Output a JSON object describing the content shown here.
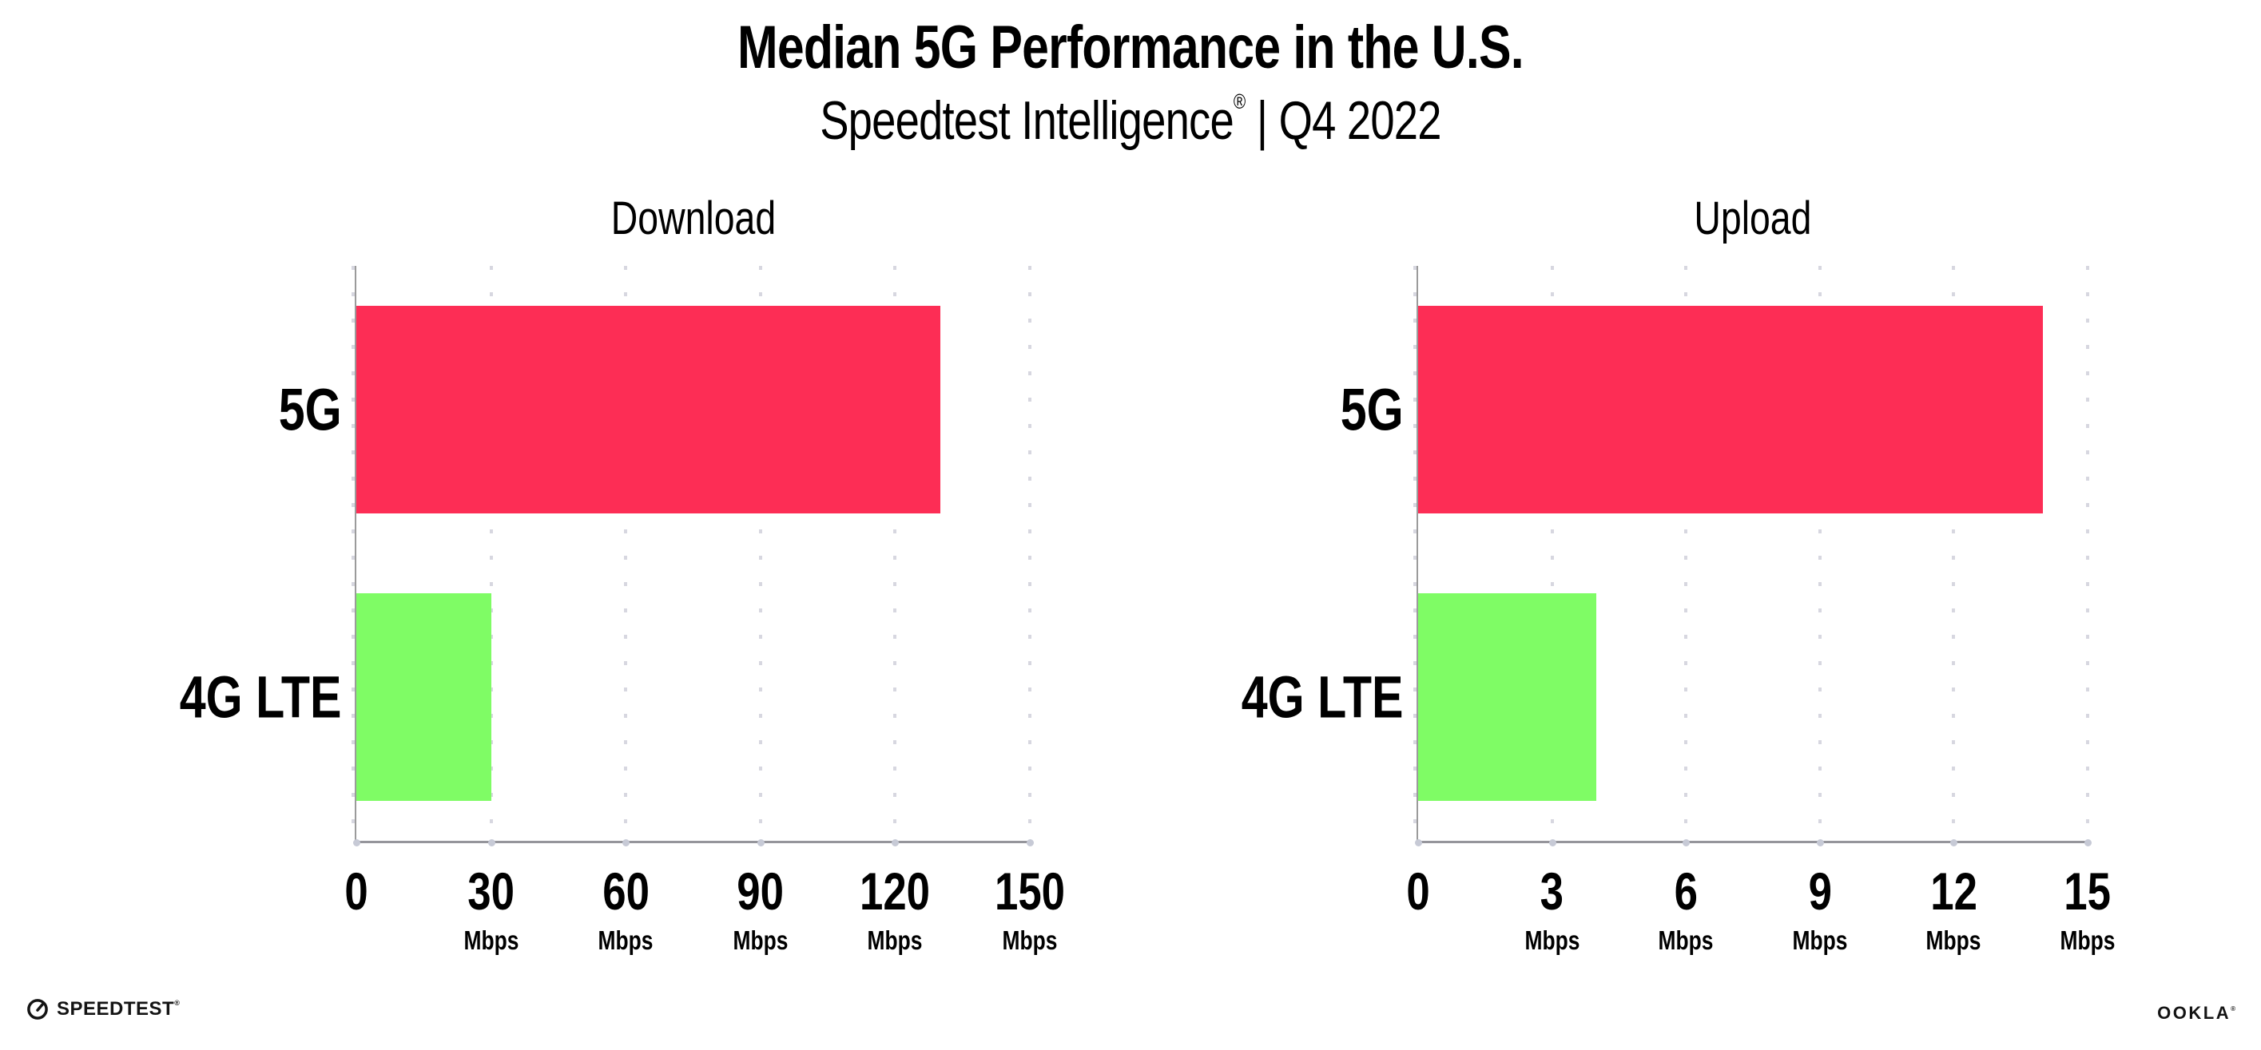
{
  "page": {
    "background": "#ffffff"
  },
  "header": {
    "title": "Median 5G Performance in the U.S.",
    "subtitle_brand": "Speedtest Intelligence",
    "subtitle_reg": "®",
    "subtitle_separator": "|",
    "subtitle_period": "Q4 2022"
  },
  "colors": {
    "bar_5g": "#FD2D55",
    "bar_4g_lte": "#7FFC65",
    "axis_line": "#95959B",
    "gridline_dots": "#D7D7E0",
    "axis_tick_dots": "#C7CAD6",
    "text": "#000000"
  },
  "chart_data": [
    {
      "type": "bar",
      "orientation": "horizontal",
      "title": "Download",
      "categories": [
        "5G",
        "4G LTE"
      ],
      "values": [
        130,
        30
      ],
      "unit": "Mbps",
      "xlim": [
        0,
        150
      ],
      "xticks": [
        0,
        30,
        60,
        90,
        120,
        150
      ],
      "tick_unit_label": "Mbps",
      "bar_colors": [
        "#FD2D55",
        "#7FFC65"
      ],
      "grid": "vertical-dotted",
      "legend": "none"
    },
    {
      "type": "bar",
      "orientation": "horizontal",
      "title": "Upload",
      "categories": [
        "5G",
        "4G LTE"
      ],
      "values": [
        14,
        4
      ],
      "unit": "Mbps",
      "xlim": [
        0,
        15
      ],
      "xticks": [
        0,
        3,
        6,
        9,
        12,
        15
      ],
      "tick_unit_label": "Mbps",
      "bar_colors": [
        "#FD2D55",
        "#7FFC65"
      ],
      "grid": "vertical-dotted",
      "legend": "none"
    }
  ],
  "footer": {
    "speedtest_logo_text": "SPEEDTEST",
    "speedtest_logo_mark": "®",
    "ookla_logo_text": "OOKLA",
    "ookla_logo_mark": "®"
  }
}
